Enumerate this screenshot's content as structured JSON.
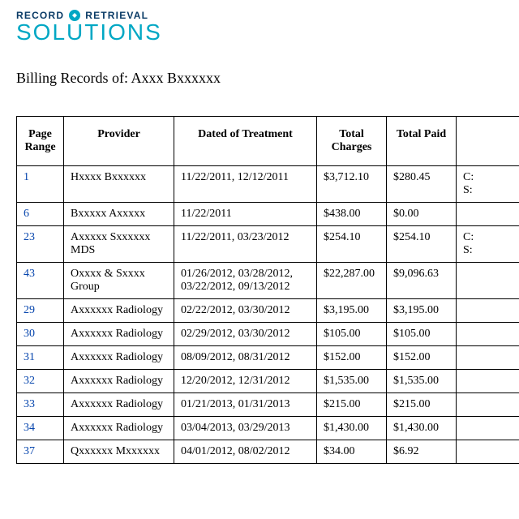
{
  "logo": {
    "line1a": "RECORD",
    "line1b": "RETRIEVAL",
    "line2": "SOLUTIONS"
  },
  "subtitle": "Billing Records of: Axxx Bxxxxxx",
  "link_color": "#0645ad",
  "table": {
    "columns": [
      "Page Range",
      "Provider",
      "Dated of Treatment",
      "Total Charges",
      "Total Paid",
      ""
    ],
    "rows": [
      {
        "page": "1",
        "provider": "Hxxxx Bxxxxxx",
        "dated": "11/22/2011, 12/12/2011",
        "charges": "$3,712.10",
        "paid": "$280.45",
        "extra": "C:\nS:"
      },
      {
        "page": "6",
        "provider": "Bxxxxx Axxxxx",
        "dated": "11/22/2011",
        "charges": "$438.00",
        "paid": "$0.00",
        "extra": ""
      },
      {
        "page": "23",
        "provider": "Axxxxx Sxxxxxx MDS",
        "dated": "11/22/2011, 03/23/2012",
        "charges": "$254.10",
        "paid": "$254.10",
        "extra": "C:\nS:"
      },
      {
        "page": "43",
        "provider": "Oxxxx & Sxxxx Group",
        "dated": "01/26/2012, 03/28/2012, 03/22/2012, 09/13/2012",
        "charges": "$22,287.00",
        "paid": "$9,096.63",
        "extra": ""
      },
      {
        "page": "29",
        "provider": "Axxxxxx Radiology",
        "dated": "02/22/2012, 03/30/2012",
        "charges": "$3,195.00",
        "paid": "$3,195.00",
        "extra": ""
      },
      {
        "page": "30",
        "provider": "Axxxxxx Radiology",
        "dated": "02/29/2012, 03/30/2012",
        "charges": "$105.00",
        "paid": "$105.00",
        "extra": ""
      },
      {
        "page": "31",
        "provider": "Axxxxxx Radiology",
        "dated": "08/09/2012, 08/31/2012",
        "charges": "$152.00",
        "paid": "$152.00",
        "extra": ""
      },
      {
        "page": "32",
        "provider": "Axxxxxx Radiology",
        "dated": "12/20/2012, 12/31/2012",
        "charges": "$1,535.00",
        "paid": "$1,535.00",
        "extra": ""
      },
      {
        "page": "33",
        "provider": "Axxxxxx Radiology",
        "dated": "01/21/2013, 01/31/2013",
        "charges": "$215.00",
        "paid": "$215.00",
        "extra": ""
      },
      {
        "page": "34",
        "provider": "Axxxxxx Radiology",
        "dated": "03/04/2013, 03/29/2013",
        "charges": "$1,430.00",
        "paid": "$1,430.00",
        "extra": ""
      },
      {
        "page": "37",
        "provider": "Qxxxxxx Mxxxxxx",
        "dated": "04/01/2012, 08/02/2012",
        "charges": "$34.00",
        "paid": "$6.92",
        "extra": ""
      }
    ]
  }
}
